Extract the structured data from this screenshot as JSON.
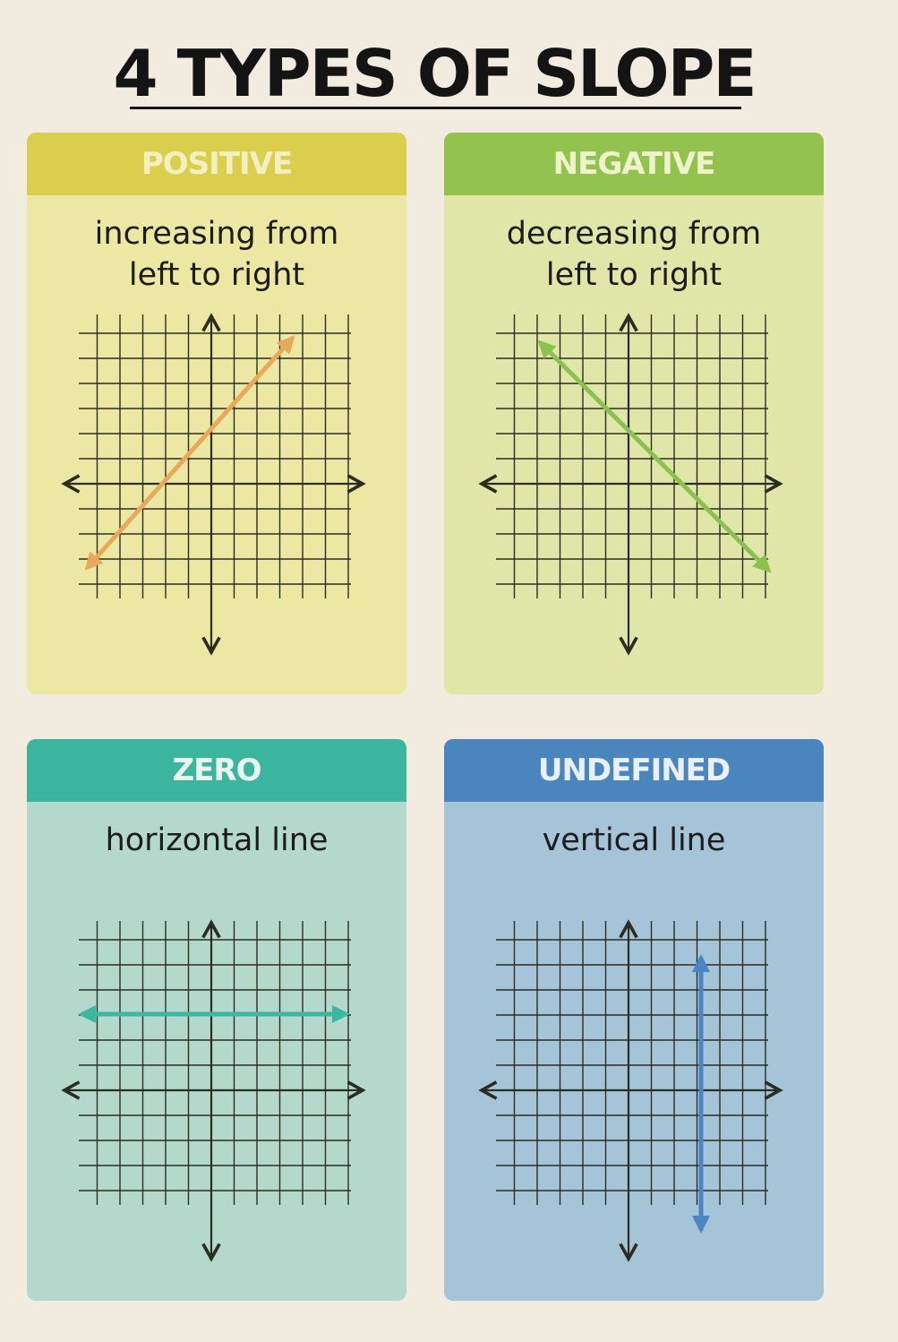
{
  "title": "4 TYPES OF SLOPE",
  "cards": [
    {
      "id": "positive",
      "header": "POSITIVE",
      "desc_line1": "increasing from",
      "desc_line2": "left to right",
      "line_color": "#e8a95a"
    },
    {
      "id": "negative",
      "header": "NEGATIVE",
      "desc_line1": "decreasing from",
      "desc_line2": "left to right",
      "line_color": "#8cc14f"
    },
    {
      "id": "zero",
      "header": "ZERO",
      "desc_line1": "horizontal line",
      "desc_line2": "",
      "line_color": "#3cb8a2"
    },
    {
      "id": "undefined",
      "header": "UNDEFINED",
      "desc_line1": "vertical line",
      "desc_line2": "",
      "line_color": "#4a86c5"
    }
  ],
  "colors": {
    "grid": "#2a2d22",
    "title": "#141414"
  }
}
